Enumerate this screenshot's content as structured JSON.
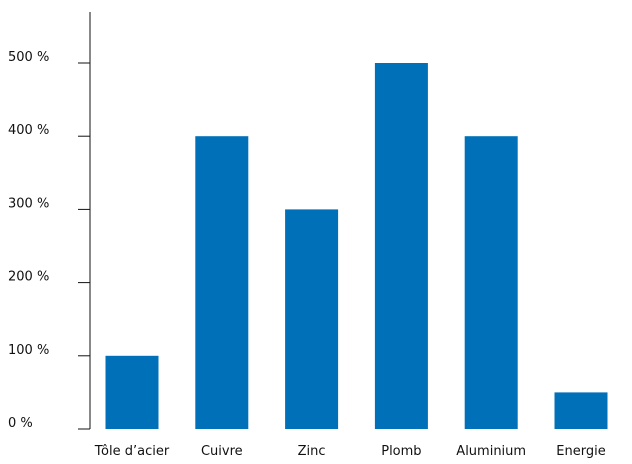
{
  "chart_data": {
    "type": "bar",
    "title": "",
    "xlabel": "",
    "ylabel": "",
    "categories": [
      "Tôle d’acier",
      "Cuivre",
      "Zinc",
      "Plomb",
      "Aluminium",
      "Energie"
    ],
    "values": [
      100,
      400,
      300,
      500,
      400,
      50
    ],
    "ylim": [
      0,
      550
    ],
    "yticks": [
      0,
      100,
      200,
      300,
      400,
      500
    ],
    "ytick_labels": [
      "0 %",
      "100 %",
      "200 %",
      "300 %",
      "400 %",
      "500 %"
    ],
    "grid": false,
    "legend": "none",
    "colors": {
      "bar": "#0070b8",
      "axis": "#111111",
      "text": "#111111"
    }
  }
}
